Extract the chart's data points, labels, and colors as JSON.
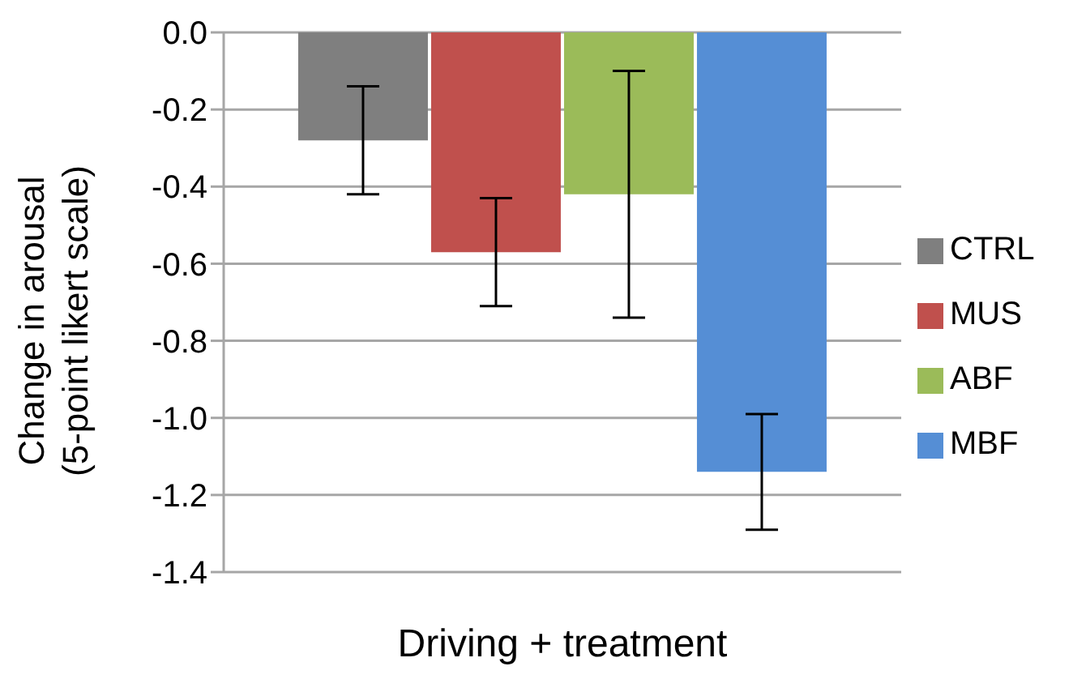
{
  "chart_data": {
    "type": "bar",
    "xlabel": "Driving + treatment",
    "ylabel": "Change in arousal\n(5-point likert scale)",
    "categories": [
      null
    ],
    "series": [
      {
        "name": "CTRL",
        "color": "#7f7f7f",
        "values": [
          -0.28
        ],
        "errors": [
          0.14
        ]
      },
      {
        "name": "MUS",
        "color": "#c0504d",
        "values": [
          -0.57
        ],
        "errors": [
          0.14
        ]
      },
      {
        "name": "ABF",
        "color": "#9bbb59",
        "values": [
          -0.42
        ],
        "errors": [
          0.32
        ]
      },
      {
        "name": "MBF",
        "color": "#558ed5",
        "values": [
          -1.14
        ],
        "errors": [
          0.15
        ]
      }
    ],
    "ylim": [
      -1.4,
      0
    ],
    "yticks": [
      {
        "value": 0,
        "label": "0.0"
      },
      -0.2,
      -0.4,
      -0.6,
      -0.8,
      {
        "value": -1,
        "label": "-1.0"
      },
      -1.2,
      -1.4
    ],
    "grid": "y",
    "legend": "right"
  }
}
